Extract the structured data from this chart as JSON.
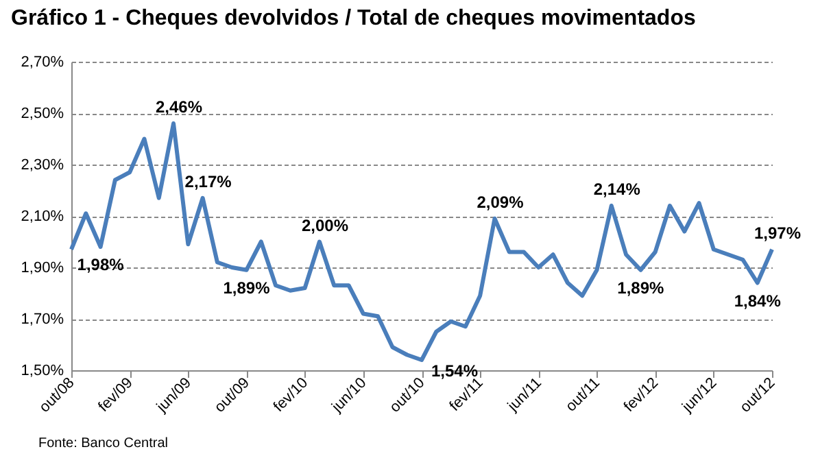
{
  "chart_data": {
    "type": "line",
    "title": "Gráfico 1 - Cheques devolvidos / Total de cheques movimentados",
    "categories": [
      "out/08",
      null,
      null,
      null,
      "fev/09",
      null,
      null,
      null,
      "jun/09",
      null,
      null,
      null,
      "out/09",
      null,
      null,
      null,
      "fev/10",
      null,
      null,
      null,
      "jun/10",
      null,
      null,
      null,
      "out/10",
      null,
      null,
      null,
      "fev/11",
      null,
      null,
      null,
      "jun/11",
      null,
      null,
      null,
      "out/11",
      null,
      null,
      null,
      "fev/12",
      null,
      null,
      null,
      "jun/12",
      null,
      null,
      null,
      "out/12"
    ],
    "series": [
      {
        "color": "#4a7ebb",
        "values": [
          1.97,
          2.11,
          1.98,
          2.24,
          2.27,
          2.4,
          2.17,
          2.46,
          1.99,
          2.17,
          1.92,
          1.9,
          1.89,
          2.0,
          1.83,
          1.81,
          1.82,
          2.0,
          1.83,
          1.83,
          1.72,
          1.71,
          1.59,
          1.56,
          1.54,
          1.65,
          1.69,
          1.67,
          1.79,
          2.09,
          1.96,
          1.96,
          1.9,
          1.95,
          1.84,
          1.79,
          1.89,
          2.14,
          1.95,
          1.89,
          1.96,
          2.14,
          2.04,
          2.15,
          1.97,
          1.95,
          1.93,
          1.84,
          1.97
        ],
        "value_labels": [
          null,
          null,
          "1,98%",
          null,
          null,
          null,
          null,
          "2,46%",
          null,
          "2,17%",
          null,
          null,
          "1,89%",
          null,
          null,
          null,
          null,
          "2,00%",
          null,
          null,
          null,
          null,
          null,
          null,
          "1,54%",
          null,
          null,
          null,
          null,
          "2,09%",
          null,
          null,
          null,
          null,
          null,
          null,
          null,
          "2,14%",
          null,
          "1,89%",
          null,
          null,
          null,
          null,
          null,
          null,
          null,
          "1,84%",
          "1,97%"
        ]
      }
    ],
    "ylim": [
      1.5,
      2.7
    ],
    "yticks": [
      {
        "value": 1.5,
        "label": "1,50%"
      },
      {
        "value": 1.7,
        "label": "1,70%"
      },
      {
        "value": 1.9,
        "label": "1,90%"
      },
      {
        "value": 2.1,
        "label": "2,10%"
      },
      {
        "value": 2.3,
        "label": "2,30%"
      },
      {
        "value": 2.5,
        "label": "2,50%"
      },
      {
        "value": 2.7,
        "label": "2,70%"
      }
    ],
    "grid": "y",
    "legend": false,
    "marker": "none",
    "line_style": "solid",
    "annotations": [
      "Fonte: Banco Central"
    ]
  }
}
